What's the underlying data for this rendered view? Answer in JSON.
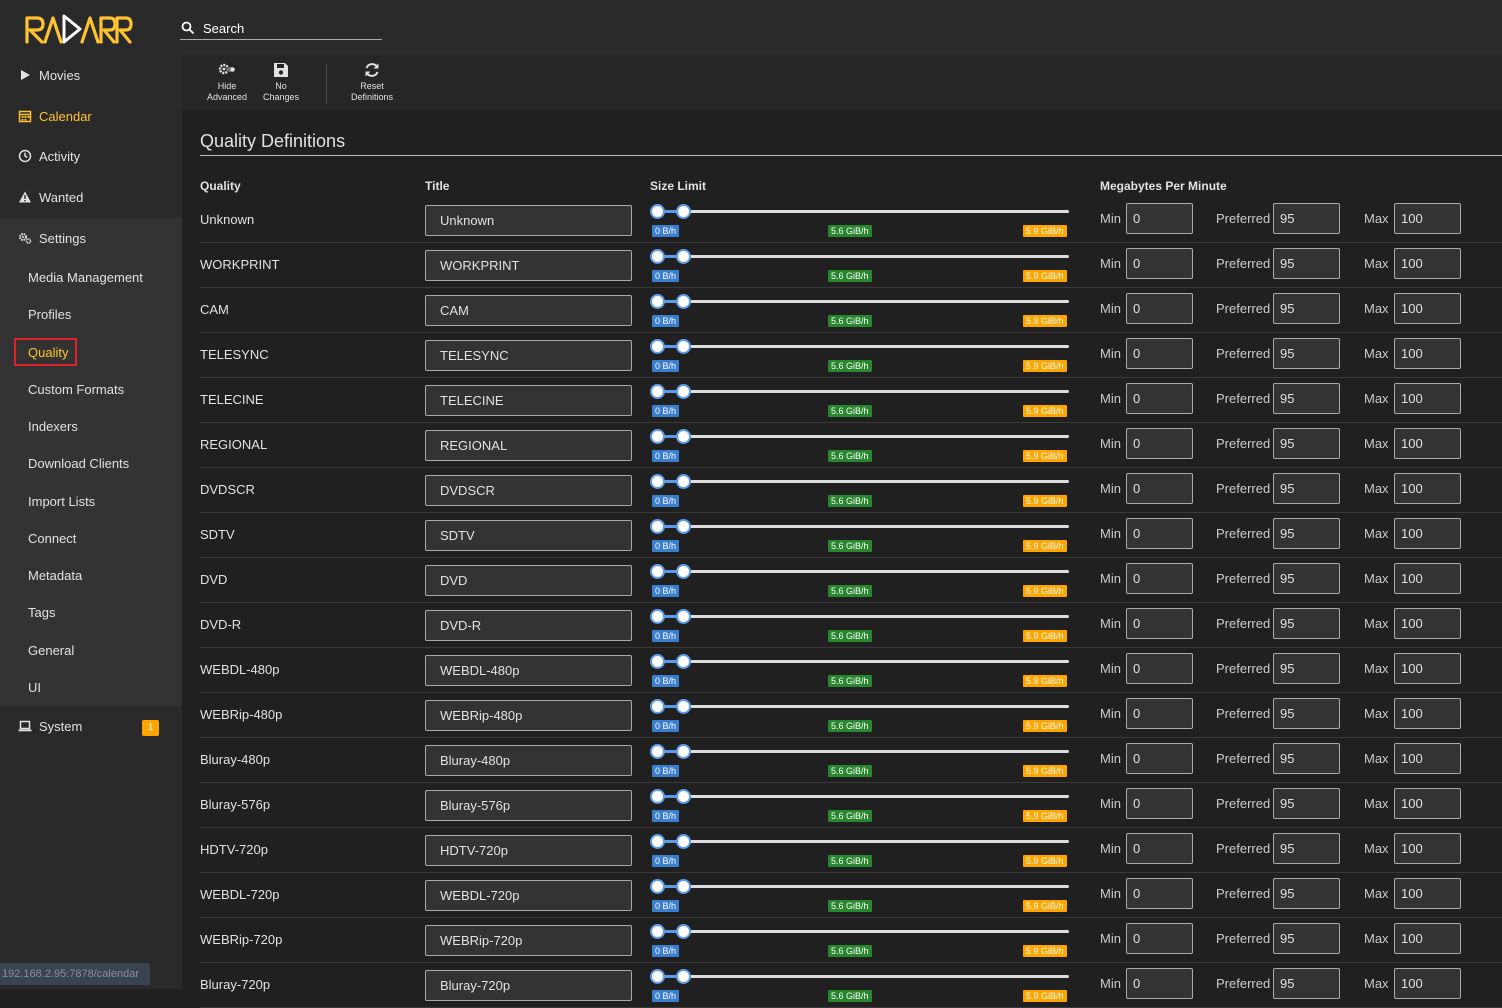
{
  "app": {
    "search_placeholder": "Search",
    "status_url": "192.168.2.95:7878/calendar"
  },
  "colors": {
    "accent": "#ffc230",
    "slider": "#5d9cec",
    "min_label": "#3a7ed0",
    "preferred_label": "#27862e",
    "max_label": "#ffa500",
    "highlight_box": "#e0202a"
  },
  "sidebar": {
    "items": [
      {
        "label": "Movies",
        "icon": "play-icon"
      },
      {
        "label": "Calendar",
        "icon": "calendar-icon"
      },
      {
        "label": "Activity",
        "icon": "clock-icon"
      },
      {
        "label": "Wanted",
        "icon": "warning-icon"
      },
      {
        "label": "Settings",
        "icon": "cogs-icon"
      },
      {
        "label": "System",
        "icon": "laptop-icon"
      }
    ],
    "settings_sub": [
      "Media Management",
      "Profiles",
      "Quality",
      "Custom Formats",
      "Indexers",
      "Download Clients",
      "Import Lists",
      "Connect",
      "Metadata",
      "Tags",
      "General",
      "UI"
    ],
    "system_badge": "1"
  },
  "toolbar": {
    "hide_advanced": [
      "Hide",
      "Advanced"
    ],
    "no_changes": [
      "No",
      "Changes"
    ],
    "reset_definitions": [
      "Reset",
      "Definitions"
    ]
  },
  "main": {
    "title": "Quality Definitions",
    "columns": {
      "quality": "Quality",
      "title": "Title",
      "size_limit": "Size Limit",
      "mb_per_min": "Megabytes Per Minute"
    },
    "labels": {
      "min": "Min",
      "preferred": "Preferred",
      "max": "Max"
    },
    "slider_labels": {
      "min": "0 B/h",
      "preferred": "5.6 GiB/h",
      "max": "5.9 GiB/h"
    },
    "rows": [
      {
        "quality": "Unknown",
        "title": "Unknown",
        "min": "0",
        "preferred": "95",
        "max": "100"
      },
      {
        "quality": "WORKPRINT",
        "title": "WORKPRINT",
        "min": "0",
        "preferred": "95",
        "max": "100"
      },
      {
        "quality": "CAM",
        "title": "CAM",
        "min": "0",
        "preferred": "95",
        "max": "100"
      },
      {
        "quality": "TELESYNC",
        "title": "TELESYNC",
        "min": "0",
        "preferred": "95",
        "max": "100"
      },
      {
        "quality": "TELECINE",
        "title": "TELECINE",
        "min": "0",
        "preferred": "95",
        "max": "100"
      },
      {
        "quality": "REGIONAL",
        "title": "REGIONAL",
        "min": "0",
        "preferred": "95",
        "max": "100"
      },
      {
        "quality": "DVDSCR",
        "title": "DVDSCR",
        "min": "0",
        "preferred": "95",
        "max": "100"
      },
      {
        "quality": "SDTV",
        "title": "SDTV",
        "min": "0",
        "preferred": "95",
        "max": "100"
      },
      {
        "quality": "DVD",
        "title": "DVD",
        "min": "0",
        "preferred": "95",
        "max": "100"
      },
      {
        "quality": "DVD-R",
        "title": "DVD-R",
        "min": "0",
        "preferred": "95",
        "max": "100"
      },
      {
        "quality": "WEBDL-480p",
        "title": "WEBDL-480p",
        "min": "0",
        "preferred": "95",
        "max": "100"
      },
      {
        "quality": "WEBRip-480p",
        "title": "WEBRip-480p",
        "min": "0",
        "preferred": "95",
        "max": "100"
      },
      {
        "quality": "Bluray-480p",
        "title": "Bluray-480p",
        "min": "0",
        "preferred": "95",
        "max": "100"
      },
      {
        "quality": "Bluray-576p",
        "title": "Bluray-576p",
        "min": "0",
        "preferred": "95",
        "max": "100"
      },
      {
        "quality": "HDTV-720p",
        "title": "HDTV-720p",
        "min": "0",
        "preferred": "95",
        "max": "100"
      },
      {
        "quality": "WEBDL-720p",
        "title": "WEBDL-720p",
        "min": "0",
        "preferred": "95",
        "max": "100"
      },
      {
        "quality": "WEBRip-720p",
        "title": "WEBRip-720p",
        "min": "0",
        "preferred": "95",
        "max": "100"
      },
      {
        "quality": "Bluray-720p",
        "title": "Bluray-720p",
        "min": "0",
        "preferred": "95",
        "max": "100"
      }
    ]
  }
}
